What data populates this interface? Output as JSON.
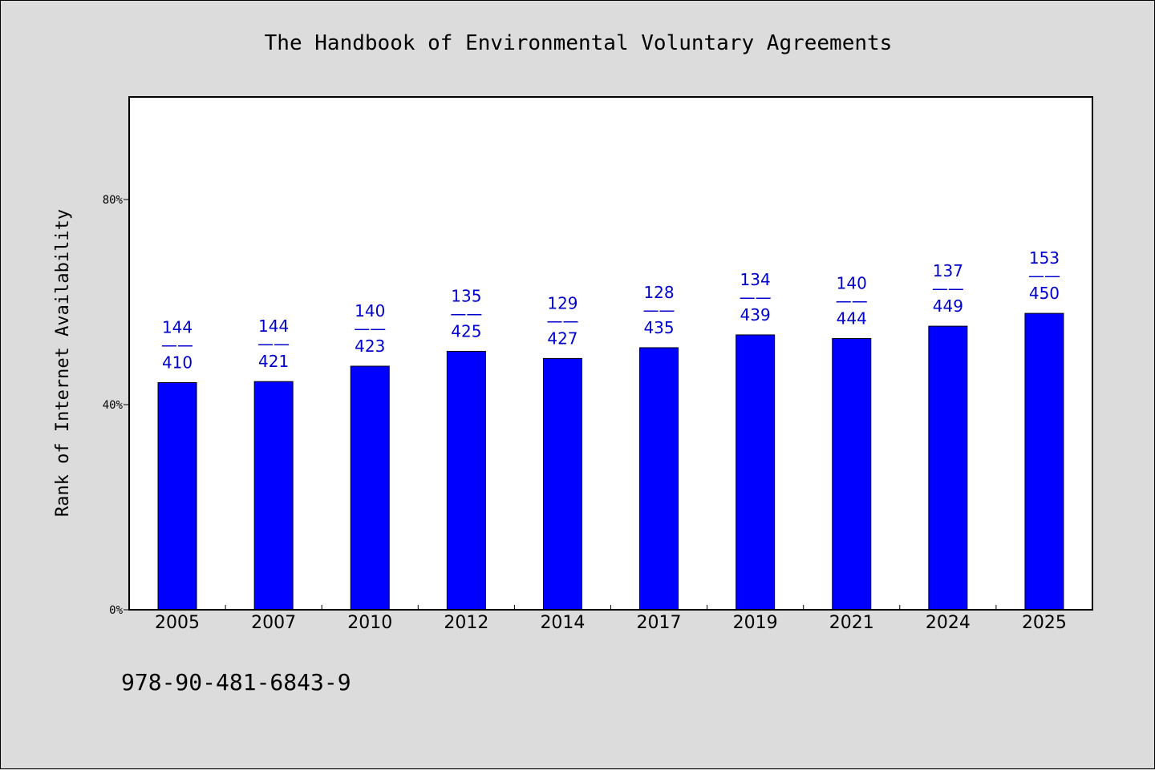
{
  "chart_data": {
    "type": "bar",
    "title": "The Handbook of Environmental Voluntary Agreements",
    "ylabel": "Rank of Internet Availability",
    "xlabel": "",
    "categories": [
      "2005",
      "2007",
      "2010",
      "2012",
      "2014",
      "2017",
      "2019",
      "2021",
      "2024",
      "2025"
    ],
    "values": [
      44.3,
      44.5,
      47.5,
      50.4,
      49.0,
      51.1,
      53.6,
      52.9,
      55.3,
      57.8
    ],
    "labels": [
      [
        "144",
        "410"
      ],
      [
        "144",
        "421"
      ],
      [
        "140",
        "423"
      ],
      [
        "135",
        "425"
      ],
      [
        "129",
        "427"
      ],
      [
        "128",
        "435"
      ],
      [
        "134",
        "439"
      ],
      [
        "140",
        "444"
      ],
      [
        "137",
        "449"
      ],
      [
        "153",
        "450"
      ]
    ],
    "label_separator": "——",
    "ylim": [
      0,
      100
    ],
    "yticks": [
      0,
      40,
      80
    ],
    "ytick_labels": [
      "0%",
      "40%",
      "80%"
    ],
    "grid": false,
    "bar_color": "#0000ff",
    "label_color": "#0000cc"
  },
  "footer": {
    "isbn": "978-90-481-6843-9"
  }
}
